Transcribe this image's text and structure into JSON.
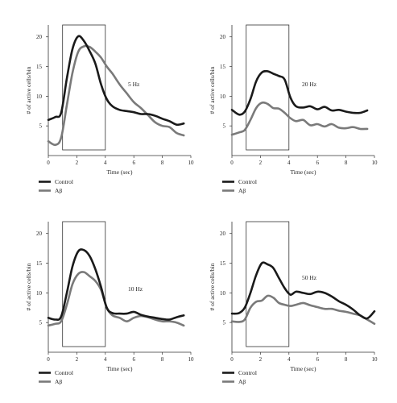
{
  "chart_data": [
    {
      "type": "line",
      "annotation": "5 Hz",
      "xlabel": "Time (sec)",
      "ylabel": "# of active cells/bin",
      "xlim": [
        0,
        10
      ],
      "ylim": [
        0,
        22
      ],
      "xticks": [
        0,
        2,
        4,
        6,
        8,
        10
      ],
      "yticks": [
        5,
        10,
        15,
        20
      ],
      "stimulus_window": [
        1,
        4
      ],
      "legend_position": "bottom-left",
      "series": [
        {
          "name": "Control",
          "color": "#1a1a1a",
          "points": [
            [
              0,
              6
            ],
            [
              0.5,
              6.5
            ],
            [
              0.9,
              7.2
            ],
            [
              1.3,
              13
            ],
            [
              1.7,
              18
            ],
            [
              2.1,
              20.1
            ],
            [
              2.5,
              19.3
            ],
            [
              2.9,
              17.6
            ],
            [
              3.3,
              15.5
            ],
            [
              3.7,
              12
            ],
            [
              4.1,
              9.5
            ],
            [
              4.5,
              8.3
            ],
            [
              5,
              7.7
            ],
            [
              5.5,
              7.5
            ],
            [
              6,
              7.3
            ],
            [
              6.5,
              7
            ],
            [
              7,
              7
            ],
            [
              7.5,
              6.7
            ],
            [
              8,
              6.2
            ],
            [
              8.5,
              5.8
            ],
            [
              9,
              5.2
            ],
            [
              9.5,
              5.4
            ]
          ]
        },
        {
          "name": "Aβ",
          "color": "#7a7a7a",
          "points": [
            [
              0,
              2.4
            ],
            [
              0.5,
              1.8
            ],
            [
              0.9,
              3
            ],
            [
              1.3,
              8.5
            ],
            [
              1.7,
              14
            ],
            [
              2.1,
              17.5
            ],
            [
              2.5,
              18.4
            ],
            [
              2.9,
              18.3
            ],
            [
              3.3,
              17.5
            ],
            [
              3.7,
              16.5
            ],
            [
              4.1,
              15
            ],
            [
              4.5,
              13.8
            ],
            [
              5,
              12
            ],
            [
              5.5,
              10.5
            ],
            [
              6,
              9
            ],
            [
              6.5,
              8
            ],
            [
              7,
              6.8
            ],
            [
              7.5,
              5.6
            ],
            [
              8,
              5
            ],
            [
              8.5,
              4.8
            ],
            [
              9,
              3.8
            ],
            [
              9.5,
              3.4
            ]
          ]
        }
      ]
    },
    {
      "type": "line",
      "annotation": "20 Hz",
      "xlabel": "Time (sec)",
      "ylabel": "# of active cells/bin",
      "xlim": [
        0,
        10
      ],
      "ylim": [
        0,
        22
      ],
      "xticks": [
        0,
        2,
        4,
        6,
        8,
        10
      ],
      "yticks": [
        5,
        10,
        15,
        20
      ],
      "stimulus_window": [
        1,
        4
      ],
      "legend_position": "bottom-left",
      "series": [
        {
          "name": "Control",
          "color": "#1a1a1a",
          "points": [
            [
              0,
              7.7
            ],
            [
              0.5,
              6.9
            ],
            [
              0.9,
              7.4
            ],
            [
              1.3,
              9.5
            ],
            [
              1.7,
              12.5
            ],
            [
              2.1,
              14
            ],
            [
              2.5,
              14.2
            ],
            [
              2.9,
              13.8
            ],
            [
              3.3,
              13.4
            ],
            [
              3.7,
              12.8
            ],
            [
              4.1,
              9.8
            ],
            [
              4.5,
              8.3
            ],
            [
              5,
              8.1
            ],
            [
              5.5,
              8.3
            ],
            [
              6,
              7.8
            ],
            [
              6.5,
              8.2
            ],
            [
              7,
              7.6
            ],
            [
              7.5,
              7.7
            ],
            [
              8,
              7.4
            ],
            [
              8.5,
              7.2
            ],
            [
              9,
              7.2
            ],
            [
              9.5,
              7.6
            ]
          ]
        },
        {
          "name": "Aβ",
          "color": "#7a7a7a",
          "points": [
            [
              0,
              3.5
            ],
            [
              0.5,
              3.9
            ],
            [
              0.9,
              4.3
            ],
            [
              1.3,
              6
            ],
            [
              1.7,
              8
            ],
            [
              2.1,
              8.9
            ],
            [
              2.5,
              8.7
            ],
            [
              2.9,
              8
            ],
            [
              3.3,
              7.9
            ],
            [
              3.7,
              7.2
            ],
            [
              4.1,
              6.3
            ],
            [
              4.5,
              5.8
            ],
            [
              5,
              6
            ],
            [
              5.5,
              5.1
            ],
            [
              6,
              5.3
            ],
            [
              6.5,
              4.9
            ],
            [
              7,
              5.3
            ],
            [
              7.5,
              4.7
            ],
            [
              8,
              4.6
            ],
            [
              8.5,
              4.8
            ],
            [
              9,
              4.5
            ],
            [
              9.5,
              4.5
            ]
          ]
        }
      ]
    },
    {
      "type": "line",
      "annotation": "10 Hz",
      "xlabel": "Time (sec)",
      "ylabel": "# of active cells/bin",
      "xlim": [
        0,
        10
      ],
      "ylim": [
        0,
        22
      ],
      "xticks": [
        0,
        2,
        4,
        6,
        8,
        10
      ],
      "yticks": [
        5,
        10,
        15,
        20
      ],
      "stimulus_window": [
        1,
        4
      ],
      "legend_position": "bottom-left",
      "series": [
        {
          "name": "Control",
          "color": "#1a1a1a",
          "points": [
            [
              0,
              5.8
            ],
            [
              0.5,
              5.5
            ],
            [
              0.9,
              6
            ],
            [
              1.3,
              10
            ],
            [
              1.7,
              14.5
            ],
            [
              2.1,
              17
            ],
            [
              2.5,
              17.2
            ],
            [
              2.9,
              16.2
            ],
            [
              3.3,
              14
            ],
            [
              3.7,
              11
            ],
            [
              4.1,
              7.5
            ],
            [
              4.5,
              6.6
            ],
            [
              5,
              6.5
            ],
            [
              5.5,
              6.5
            ],
            [
              6,
              6.8
            ],
            [
              6.5,
              6.3
            ],
            [
              7,
              6
            ],
            [
              7.5,
              5.8
            ],
            [
              8,
              5.6
            ],
            [
              8.5,
              5.5
            ],
            [
              9,
              5.9
            ],
            [
              9.5,
              6.2
            ]
          ]
        },
        {
          "name": "Aβ",
          "color": "#7a7a7a",
          "points": [
            [
              0,
              4.5
            ],
            [
              0.5,
              4.8
            ],
            [
              0.9,
              5.2
            ],
            [
              1.3,
              8
            ],
            [
              1.7,
              11.5
            ],
            [
              2.1,
              13.2
            ],
            [
              2.5,
              13.5
            ],
            [
              2.9,
              12.8
            ],
            [
              3.3,
              12
            ],
            [
              3.7,
              10.5
            ],
            [
              4.1,
              7.5
            ],
            [
              4.5,
              6.2
            ],
            [
              5,
              5.8
            ],
            [
              5.5,
              5.2
            ],
            [
              6,
              5.8
            ],
            [
              6.5,
              6.1
            ],
            [
              7,
              5.9
            ],
            [
              7.5,
              5.5
            ],
            [
              8,
              5.2
            ],
            [
              8.5,
              5.2
            ],
            [
              9,
              5
            ],
            [
              9.5,
              4.5
            ]
          ]
        }
      ]
    },
    {
      "type": "line",
      "annotation": "50 Hz",
      "xlabel": "Time (sec)",
      "ylabel": "# of active cells/bin",
      "xlim": [
        0,
        10
      ],
      "ylim": [
        0,
        22
      ],
      "xticks": [
        0,
        2,
        4,
        6,
        8,
        10
      ],
      "yticks": [
        5,
        10,
        15,
        20
      ],
      "stimulus_window": [
        1,
        4
      ],
      "legend_position": "bottom-left",
      "series": [
        {
          "name": "Control",
          "color": "#1a1a1a",
          "points": [
            [
              0,
              6.5
            ],
            [
              0.5,
              6.6
            ],
            [
              0.9,
              7.5
            ],
            [
              1.3,
              10
            ],
            [
              1.7,
              13
            ],
            [
              2.1,
              15
            ],
            [
              2.5,
              14.8
            ],
            [
              2.9,
              14.2
            ],
            [
              3.3,
              12.5
            ],
            [
              3.7,
              10.8
            ],
            [
              4.1,
              9.7
            ],
            [
              4.5,
              10.2
            ],
            [
              5,
              10
            ],
            [
              5.5,
              9.8
            ],
            [
              6,
              10.2
            ],
            [
              6.5,
              10
            ],
            [
              7,
              9.4
            ],
            [
              7.5,
              8.6
            ],
            [
              8,
              8
            ],
            [
              8.5,
              7.2
            ],
            [
              9,
              6.2
            ],
            [
              9.5,
              5.7
            ],
            [
              10,
              6.9
            ]
          ]
        },
        {
          "name": "Aβ",
          "color": "#7a7a7a",
          "points": [
            [
              0,
              5.2
            ],
            [
              0.5,
              5.1
            ],
            [
              0.9,
              5.5
            ],
            [
              1.3,
              7.5
            ],
            [
              1.7,
              8.5
            ],
            [
              2.1,
              8.7
            ],
            [
              2.5,
              9.5
            ],
            [
              2.9,
              9.2
            ],
            [
              3.3,
              8.3
            ],
            [
              3.7,
              8
            ],
            [
              4.1,
              7.8
            ],
            [
              4.5,
              8
            ],
            [
              5,
              8.3
            ],
            [
              5.5,
              7.9
            ],
            [
              6,
              7.6
            ],
            [
              6.5,
              7.3
            ],
            [
              7,
              7.3
            ],
            [
              7.5,
              7
            ],
            [
              8,
              6.8
            ],
            [
              8.5,
              6.5
            ],
            [
              9,
              6.2
            ],
            [
              9.5,
              5.5
            ],
            [
              10,
              4.8
            ]
          ]
        }
      ]
    }
  ]
}
